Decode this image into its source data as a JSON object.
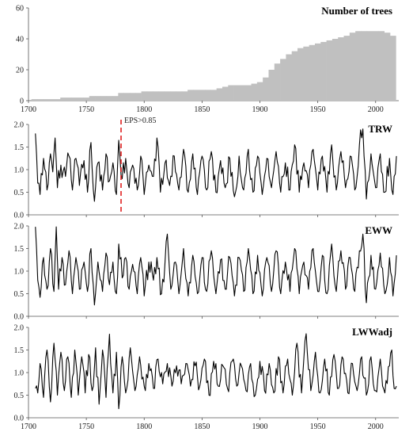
{
  "chart_data": [
    {
      "type": "bar",
      "title": "Number of trees",
      "xlim": [
        1700,
        2020
      ],
      "ylim": [
        0,
        60
      ],
      "yticks": [
        0,
        20,
        40,
        60
      ],
      "xticks": [
        1700,
        1750,
        1800,
        1850,
        1900,
        1950,
        2000
      ],
      "bar_color": "#c0c0c0",
      "step_years": 5,
      "x": [
        1705,
        1710,
        1715,
        1720,
        1725,
        1730,
        1735,
        1740,
        1745,
        1750,
        1755,
        1760,
        1765,
        1770,
        1775,
        1780,
        1785,
        1790,
        1795,
        1800,
        1805,
        1810,
        1815,
        1820,
        1825,
        1830,
        1835,
        1840,
        1845,
        1850,
        1855,
        1860,
        1865,
        1870,
        1875,
        1880,
        1885,
        1890,
        1895,
        1900,
        1905,
        1910,
        1915,
        1920,
        1925,
        1930,
        1935,
        1940,
        1945,
        1950,
        1955,
        1960,
        1965,
        1970,
        1975,
        1980,
        1985,
        1990,
        1995,
        2000,
        2005,
        2010,
        2015
      ],
      "values": [
        1,
        1,
        1,
        1,
        1,
        2,
        2,
        2,
        2,
        2,
        3,
        3,
        3,
        3,
        3,
        5,
        5,
        5,
        5,
        6,
        6,
        6,
        6,
        6,
        6,
        6,
        6,
        7,
        7,
        7,
        7,
        7,
        8,
        9,
        10,
        10,
        10,
        10,
        11,
        12,
        15,
        20,
        24,
        27,
        30,
        32,
        34,
        35,
        36,
        37,
        38,
        39,
        40,
        41,
        42,
        44,
        45,
        45,
        45,
        45,
        45,
        44,
        42
      ]
    },
    {
      "type": "line",
      "title": "TRW",
      "xlim": [
        1700,
        2020
      ],
      "ylim": [
        0,
        2
      ],
      "yticks": [
        0.0,
        0.5,
        1.0,
        1.5,
        2.0
      ],
      "annotation": {
        "text": "EPS>0.85",
        "x": 1780,
        "color": "#e02020"
      },
      "x_start": 1706,
      "x_end": 2018,
      "anchors": [
        [
          1706,
          1.8
        ],
        [
          1708,
          0.7
        ],
        [
          1710,
          0.45
        ],
        [
          1713,
          1.25
        ],
        [
          1716,
          0.55
        ],
        [
          1719,
          1.35
        ],
        [
          1721,
          0.95
        ],
        [
          1723,
          1.7
        ],
        [
          1725,
          0.6
        ],
        [
          1728,
          1.1
        ],
        [
          1732,
          0.85
        ],
        [
          1735,
          1.3
        ],
        [
          1738,
          0.55
        ],
        [
          1741,
          1.25
        ],
        [
          1744,
          0.65
        ],
        [
          1748,
          1.2
        ],
        [
          1751,
          0.5
        ],
        [
          1754,
          1.6
        ],
        [
          1757,
          0.3
        ],
        [
          1760,
          1.15
        ],
        [
          1764,
          0.55
        ],
        [
          1767,
          1.35
        ],
        [
          1770,
          0.75
        ],
        [
          1773,
          1.15
        ],
        [
          1776,
          0.45
        ],
        [
          1778,
          1.65
        ],
        [
          1781,
          0.8
        ],
        [
          1784,
          1.25
        ],
        [
          1787,
          0.6
        ],
        [
          1790,
          1.1
        ],
        [
          1794,
          0.55
        ],
        [
          1797,
          1.3
        ],
        [
          1800,
          0.45
        ],
        [
          1804,
          1.1
        ],
        [
          1808,
          0.85
        ],
        [
          1811,
          1.7
        ],
        [
          1814,
          0.5
        ],
        [
          1818,
          1.15
        ],
        [
          1822,
          0.65
        ],
        [
          1826,
          1.3
        ],
        [
          1830,
          0.55
        ],
        [
          1834,
          1.45
        ],
        [
          1838,
          0.5
        ],
        [
          1842,
          1.35
        ],
        [
          1846,
          0.45
        ],
        [
          1850,
          1.3
        ],
        [
          1854,
          0.55
        ],
        [
          1858,
          1.4
        ],
        [
          1862,
          0.5
        ],
        [
          1866,
          1.2
        ],
        [
          1870,
          0.6
        ],
        [
          1874,
          1.25
        ],
        [
          1878,
          0.4
        ],
        [
          1882,
          1.3
        ],
        [
          1886,
          0.55
        ],
        [
          1890,
          1.45
        ],
        [
          1894,
          0.5
        ],
        [
          1898,
          1.3
        ],
        [
          1902,
          0.45
        ],
        [
          1906,
          1.25
        ],
        [
          1910,
          0.6
        ],
        [
          1914,
          1.4
        ],
        [
          1918,
          0.5
        ],
        [
          1922,
          1.15
        ],
        [
          1926,
          0.55
        ],
        [
          1930,
          1.55
        ],
        [
          1934,
          0.5
        ],
        [
          1938,
          1.15
        ],
        [
          1942,
          0.6
        ],
        [
          1946,
          1.45
        ],
        [
          1950,
          0.55
        ],
        [
          1954,
          1.3
        ],
        [
          1958,
          0.5
        ],
        [
          1962,
          1.55
        ],
        [
          1966,
          0.55
        ],
        [
          1970,
          1.4
        ],
        [
          1974,
          0.6
        ],
        [
          1978,
          1.3
        ],
        [
          1982,
          0.55
        ],
        [
          1986,
          1.55
        ],
        [
          1989,
          1.9
        ],
        [
          1992,
          0.35
        ],
        [
          1996,
          1.35
        ],
        [
          2000,
          0.6
        ],
        [
          2004,
          1.35
        ],
        [
          2008,
          0.5
        ],
        [
          2012,
          1.25
        ],
        [
          2015,
          0.45
        ],
        [
          2018,
          1.3
        ]
      ]
    },
    {
      "type": "line",
      "title": "EWW",
      "xlim": [
        1700,
        2020
      ],
      "ylim": [
        0,
        2
      ],
      "yticks": [
        0.0,
        0.5,
        1.0,
        1.5,
        2.0
      ],
      "x_start": 1706,
      "x_end": 2018,
      "anchors": [
        [
          1706,
          1.98
        ],
        [
          1708,
          0.8
        ],
        [
          1710,
          0.42
        ],
        [
          1713,
          1.3
        ],
        [
          1716,
          0.6
        ],
        [
          1719,
          1.5
        ],
        [
          1722,
          0.55
        ],
        [
          1724,
          1.98
        ],
        [
          1726,
          0.6
        ],
        [
          1729,
          1.3
        ],
        [
          1732,
          0.7
        ],
        [
          1735,
          1.45
        ],
        [
          1738,
          0.5
        ],
        [
          1741,
          1.3
        ],
        [
          1744,
          0.6
        ],
        [
          1748,
          1.2
        ],
        [
          1751,
          0.55
        ],
        [
          1754,
          1.5
        ],
        [
          1757,
          0.25
        ],
        [
          1760,
          1.2
        ],
        [
          1764,
          0.55
        ],
        [
          1767,
          1.4
        ],
        [
          1770,
          0.7
        ],
        [
          1773,
          1.2
        ],
        [
          1776,
          0.5
        ],
        [
          1778,
          1.6
        ],
        [
          1781,
          0.85
        ],
        [
          1784,
          1.3
        ],
        [
          1787,
          0.6
        ],
        [
          1790,
          1.15
        ],
        [
          1794,
          0.5
        ],
        [
          1797,
          1.3
        ],
        [
          1800,
          0.45
        ],
        [
          1804,
          1.2
        ],
        [
          1808,
          0.8
        ],
        [
          1811,
          1.3
        ],
        [
          1815,
          0.5
        ],
        [
          1818,
          1.2
        ],
        [
          1820,
          1.82
        ],
        [
          1823,
          0.6
        ],
        [
          1827,
          1.2
        ],
        [
          1830,
          0.5
        ],
        [
          1834,
          1.5
        ],
        [
          1838,
          0.45
        ],
        [
          1842,
          1.35
        ],
        [
          1846,
          0.5
        ],
        [
          1850,
          1.3
        ],
        [
          1854,
          0.55
        ],
        [
          1858,
          1.45
        ],
        [
          1862,
          0.5
        ],
        [
          1866,
          1.25
        ],
        [
          1870,
          0.6
        ],
        [
          1874,
          1.3
        ],
        [
          1878,
          0.45
        ],
        [
          1882,
          1.3
        ],
        [
          1886,
          0.55
        ],
        [
          1890,
          1.5
        ],
        [
          1894,
          0.5
        ],
        [
          1898,
          1.35
        ],
        [
          1902,
          0.45
        ],
        [
          1906,
          1.3
        ],
        [
          1910,
          0.55
        ],
        [
          1914,
          1.45
        ],
        [
          1918,
          0.5
        ],
        [
          1922,
          1.2
        ],
        [
          1926,
          0.55
        ],
        [
          1930,
          1.5
        ],
        [
          1934,
          0.5
        ],
        [
          1938,
          1.2
        ],
        [
          1942,
          0.6
        ],
        [
          1946,
          1.5
        ],
        [
          1950,
          0.55
        ],
        [
          1954,
          1.35
        ],
        [
          1958,
          0.5
        ],
        [
          1962,
          1.6
        ],
        [
          1966,
          0.55
        ],
        [
          1970,
          1.45
        ],
        [
          1974,
          0.6
        ],
        [
          1978,
          1.3
        ],
        [
          1982,
          0.55
        ],
        [
          1986,
          1.45
        ],
        [
          1989,
          1.82
        ],
        [
          1992,
          0.3
        ],
        [
          1996,
          1.35
        ],
        [
          2000,
          0.6
        ],
        [
          2004,
          1.4
        ],
        [
          2008,
          0.5
        ],
        [
          2012,
          1.3
        ],
        [
          2015,
          0.45
        ],
        [
          2018,
          1.35
        ]
      ]
    },
    {
      "type": "line",
      "title": "LWWadj",
      "xlim": [
        1700,
        2020
      ],
      "ylim": [
        0,
        2
      ],
      "yticks": [
        0.0,
        0.5,
        1.0,
        1.5,
        2.0
      ],
      "x_start": 1706,
      "x_end": 2018,
      "anchors": [
        [
          1706,
          0.65
        ],
        [
          1708,
          0.55
        ],
        [
          1710,
          1.2
        ],
        [
          1713,
          0.45
        ],
        [
          1716,
          1.5
        ],
        [
          1719,
          0.35
        ],
        [
          1722,
          1.65
        ],
        [
          1725,
          0.5
        ],
        [
          1728,
          1.45
        ],
        [
          1731,
          0.6
        ],
        [
          1734,
          1.35
        ],
        [
          1737,
          0.45
        ],
        [
          1740,
          1.5
        ],
        [
          1743,
          0.5
        ],
        [
          1746,
          1.35
        ],
        [
          1749,
          0.55
        ],
        [
          1752,
          1.4
        ],
        [
          1755,
          0.6
        ],
        [
          1758,
          1.55
        ],
        [
          1761,
          0.3
        ],
        [
          1764,
          1.5
        ],
        [
          1767,
          0.45
        ],
        [
          1770,
          1.85
        ],
        [
          1773,
          0.55
        ],
        [
          1776,
          1.45
        ],
        [
          1778,
          0.2
        ],
        [
          1781,
          1.35
        ],
        [
          1784,
          0.55
        ],
        [
          1788,
          1.55
        ],
        [
          1792,
          0.6
        ],
        [
          1796,
          1.35
        ],
        [
          1800,
          0.7
        ],
        [
          1804,
          1.2
        ],
        [
          1808,
          0.65
        ],
        [
          1812,
          1.3
        ],
        [
          1816,
          0.75
        ],
        [
          1820,
          1.2
        ],
        [
          1824,
          0.7
        ],
        [
          1828,
          1.15
        ],
        [
          1832,
          0.75
        ],
        [
          1836,
          1.2
        ],
        [
          1840,
          0.7
        ],
        [
          1844,
          1.15
        ],
        [
          1848,
          0.7
        ],
        [
          1852,
          1.3
        ],
        [
          1856,
          0.5
        ],
        [
          1860,
          1.25
        ],
        [
          1864,
          0.7
        ],
        [
          1868,
          1.15
        ],
        [
          1872,
          0.65
        ],
        [
          1876,
          1.25
        ],
        [
          1880,
          0.7
        ],
        [
          1884,
          1.15
        ],
        [
          1888,
          0.6
        ],
        [
          1892,
          1.2
        ],
        [
          1896,
          0.5
        ],
        [
          1900,
          1.25
        ],
        [
          1904,
          0.6
        ],
        [
          1908,
          1.2
        ],
        [
          1912,
          0.55
        ],
        [
          1916,
          1.35
        ],
        [
          1920,
          0.55
        ],
        [
          1924,
          1.3
        ],
        [
          1928,
          0.5
        ],
        [
          1932,
          1.65
        ],
        [
          1936,
          0.55
        ],
        [
          1940,
          1.86
        ],
        [
          1944,
          0.6
        ],
        [
          1948,
          1.45
        ],
        [
          1952,
          0.55
        ],
        [
          1956,
          1.3
        ],
        [
          1960,
          0.5
        ],
        [
          1964,
          1.4
        ],
        [
          1968,
          0.65
        ],
        [
          1972,
          1.3
        ],
        [
          1976,
          0.55
        ],
        [
          1980,
          1.2
        ],
        [
          1984,
          0.6
        ],
        [
          1988,
          1.35
        ],
        [
          1992,
          0.5
        ],
        [
          1996,
          1.35
        ],
        [
          2000,
          0.6
        ],
        [
          2004,
          1.3
        ],
        [
          2008,
          0.55
        ],
        [
          2012,
          1.15
        ],
        [
          2014,
          1.5
        ],
        [
          2016,
          0.65
        ],
        [
          2018,
          0.7
        ]
      ]
    }
  ],
  "xaxis_tick_labels": [
    "1700",
    "1750",
    "1800",
    "1850",
    "1900",
    "1950",
    "2000"
  ]
}
